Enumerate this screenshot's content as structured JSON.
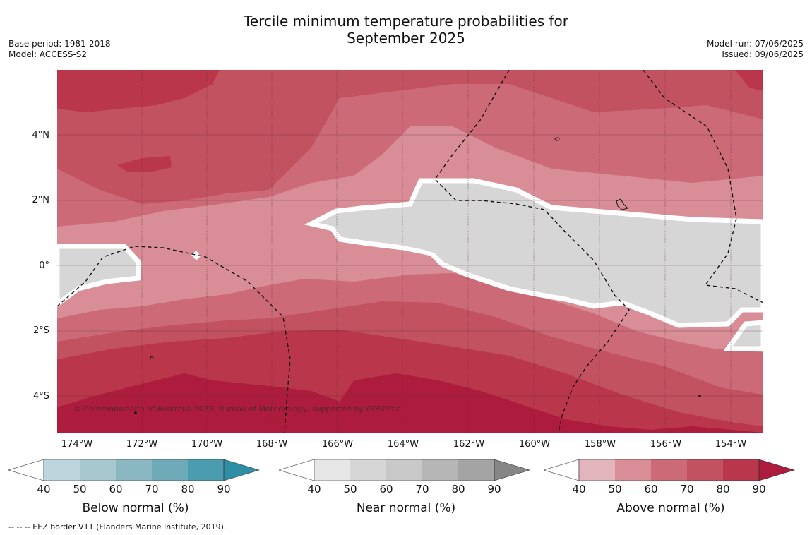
{
  "title_line1": "Tercile minimum temperature probabilities for",
  "title_line2": "September 2025",
  "meta_left": {
    "base_period": "Base period: 1981-2018",
    "model": "Model: ACCESS-S2"
  },
  "meta_right": {
    "model_run": "Model run: 07/06/2025",
    "issued": "Issued: 09/06/2025"
  },
  "lat_labels": [
    "4°N",
    "2°N",
    "0°",
    "2°S",
    "4°S"
  ],
  "lon_labels": [
    "174°W",
    "172°W",
    "170°W",
    "168°W",
    "166°W",
    "164°W",
    "162°W",
    "160°W",
    "158°W",
    "156°W",
    "154°W"
  ],
  "copyright": "© Commonwealth of Australia 2025, Bureau of Meteorology, supported by COSPPac",
  "legends": [
    {
      "label": "Below normal (%)",
      "ticks": [
        "40",
        "50",
        "60",
        "70",
        "80",
        "90"
      ],
      "colors": [
        "#ffffff",
        "#bdd6dd",
        "#a7c8cf",
        "#8bb7c3",
        "#6eaab8",
        "#4a9cae",
        "#2e8ea3"
      ]
    },
    {
      "label": "Near normal (%)",
      "ticks": [
        "40",
        "50",
        "60",
        "70",
        "80",
        "90"
      ],
      "colors": [
        "#ffffff",
        "#e6e6e6",
        "#d6d6d6",
        "#c8c8c8",
        "#b6b6b6",
        "#a4a4a4",
        "#868686"
      ]
    },
    {
      "label": "Above normal (%)",
      "ticks": [
        "40",
        "50",
        "60",
        "70",
        "80",
        "90"
      ],
      "colors": [
        "#ffffff",
        "#e2b5bd",
        "#d88d97",
        "#cd6a77",
        "#c35260",
        "#b9364b",
        "#ad1c3c"
      ]
    }
  ],
  "footnote": "--  --  -- EEZ border V11 (Flanders Marine Institute, 2019)."
}
